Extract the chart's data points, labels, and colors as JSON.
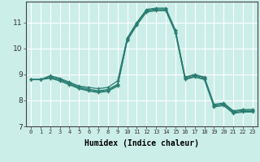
{
  "title": "",
  "xlabel": "Humidex (Indice chaleur)",
  "background_color": "#cceee8",
  "grid_color": "#ffffff",
  "line_color": "#2a7d72",
  "xlim": [
    -0.5,
    23.5
  ],
  "ylim": [
    7.0,
    11.8
  ],
  "xticks": [
    0,
    1,
    2,
    3,
    4,
    5,
    6,
    7,
    8,
    9,
    10,
    11,
    12,
    13,
    14,
    15,
    16,
    17,
    18,
    19,
    20,
    21,
    22,
    23
  ],
  "yticks": [
    7,
    8,
    9,
    10,
    11
  ],
  "lines": [
    [
      8.8,
      8.8,
      8.95,
      8.85,
      8.7,
      8.55,
      8.5,
      8.45,
      8.5,
      8.75,
      10.4,
      11.0,
      11.5,
      11.55,
      11.55,
      10.7,
      8.9,
      9.0,
      8.9,
      7.85,
      7.9,
      7.6,
      7.65,
      7.65
    ],
    [
      8.8,
      8.8,
      8.92,
      8.82,
      8.67,
      8.52,
      8.43,
      8.37,
      8.42,
      8.62,
      10.37,
      10.97,
      11.47,
      11.52,
      11.52,
      10.67,
      8.87,
      8.97,
      8.87,
      7.82,
      7.87,
      7.57,
      7.62,
      7.62
    ],
    [
      8.8,
      8.8,
      8.88,
      8.78,
      8.63,
      8.48,
      8.39,
      8.33,
      8.38,
      8.58,
      10.33,
      10.93,
      11.43,
      11.48,
      11.48,
      10.63,
      8.83,
      8.93,
      8.83,
      7.78,
      7.83,
      7.53,
      7.58,
      7.58
    ],
    [
      8.8,
      8.8,
      8.85,
      8.75,
      8.6,
      8.45,
      8.36,
      8.3,
      8.35,
      8.55,
      10.3,
      10.9,
      11.4,
      11.45,
      11.45,
      10.6,
      8.8,
      8.9,
      8.8,
      7.75,
      7.8,
      7.5,
      7.55,
      7.55
    ]
  ]
}
